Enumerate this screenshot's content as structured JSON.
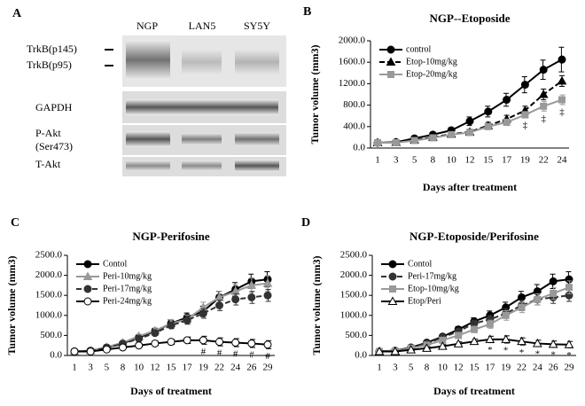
{
  "blot": {
    "panel_label": "A",
    "lanes": [
      "NGP",
      "LAN5",
      "SY5Y"
    ],
    "rows": [
      "TrkB(p145)",
      "TrkB(p95)",
      "GAPDH",
      "P-Akt",
      "(Ser473)",
      "T-Akt"
    ]
  },
  "chart_data": [
    {
      "type": "line",
      "panel_label": "B",
      "title": "NGP--Etoposide",
      "x_label": "Days after treatment",
      "y_label": "Tumor volume (mm3)",
      "categories": [
        "1",
        "3",
        "5",
        "8",
        "10",
        "12",
        "15",
        "17",
        "19",
        "22",
        "24"
      ],
      "ylim": [
        0,
        2000
      ],
      "yticks": [
        {
          "value": 0,
          "label": "0.0"
        },
        {
          "value": 400,
          "label": "400.0"
        },
        {
          "value": 800,
          "label": "800.0"
        },
        {
          "value": 1200,
          "label": "1200.0"
        },
        {
          "value": 1600,
          "label": "1600.0"
        },
        {
          "value": 2000,
          "label": "2000.0"
        }
      ],
      "legend": "top-left",
      "series": [
        {
          "name": "control",
          "color": "#000000",
          "marker": "circle",
          "dash": "solid",
          "values": [
            100,
            110,
            180,
            250,
            330,
            500,
            680,
            900,
            1180,
            1460,
            1650
          ],
          "errors": [
            20,
            20,
            30,
            40,
            50,
            80,
            100,
            120,
            150,
            180,
            230
          ]
        },
        {
          "name": "Etop-10mg/kg",
          "color": "#000000",
          "marker": "triangle",
          "dash": "dashed",
          "values": [
            100,
            105,
            150,
            200,
            260,
            300,
            420,
            540,
            700,
            1000,
            1250
          ],
          "errors": [
            15,
            15,
            20,
            30,
            40,
            50,
            60,
            70,
            80,
            100,
            100
          ]
        },
        {
          "name": "Etop-20mg/kg",
          "color": "#999999",
          "marker": "square",
          "dash": "solid",
          "values": [
            100,
            100,
            140,
            190,
            250,
            290,
            400,
            480,
            620,
            780,
            900
          ],
          "errors": [
            15,
            15,
            20,
            30,
            40,
            40,
            50,
            60,
            60,
            90,
            90
          ]
        }
      ],
      "annotations": [
        {
          "x": "19",
          "label": "‡"
        },
        {
          "x": "22",
          "label": "‡"
        },
        {
          "x": "24",
          "label": "‡"
        }
      ]
    },
    {
      "type": "line",
      "panel_label": "C",
      "title": "NGP-Perifosine",
      "x_label": "Days of treatment",
      "y_label": "Tumor volume (mm3)",
      "categories": [
        "1",
        "3",
        "5",
        "8",
        "10",
        "12",
        "15",
        "17",
        "19",
        "22",
        "24",
        "26",
        "29"
      ],
      "ylim": [
        0,
        2500
      ],
      "yticks": [
        {
          "value": 0,
          "label": "0.0"
        },
        {
          "value": 500,
          "label": "500.0"
        },
        {
          "value": 1000,
          "label": "1000.0"
        },
        {
          "value": 1500,
          "label": "1500.0"
        },
        {
          "value": 2000,
          "label": "2000.0"
        },
        {
          "value": 2500,
          "label": "2500.0"
        }
      ],
      "legend": "top-left",
      "series": [
        {
          "name": "Contol",
          "color": "#000000",
          "marker": "circle",
          "dash": "solid",
          "values": [
            100,
            120,
            200,
            300,
            450,
            600,
            800,
            950,
            1100,
            1450,
            1650,
            1850,
            1900
          ],
          "errors": [
            20,
            20,
            30,
            40,
            50,
            70,
            90,
            110,
            130,
            150,
            170,
            180,
            190
          ]
        },
        {
          "name": "Peri-10mg/kg",
          "color": "#999999",
          "marker": "triangle",
          "dash": "solid",
          "values": [
            100,
            120,
            210,
            320,
            480,
            620,
            800,
            900,
            1200,
            1450,
            1600,
            1750,
            1800
          ],
          "errors": [
            20,
            20,
            30,
            40,
            50,
            70,
            90,
            110,
            130,
            150,
            170,
            180,
            190
          ]
        },
        {
          "name": "Peri-17mg/kg",
          "color": "#333333",
          "marker": "circle",
          "dash": "dashed",
          "values": [
            100,
            110,
            190,
            290,
            420,
            560,
            750,
            880,
            1050,
            1250,
            1400,
            1450,
            1500
          ],
          "errors": [
            20,
            20,
            30,
            40,
            50,
            60,
            80,
            100,
            120,
            130,
            140,
            150,
            150
          ]
        },
        {
          "name": "Peri-24mg/kg",
          "color": "#000000",
          "marker": "open-circle",
          "dash": "solid",
          "values": [
            100,
            100,
            150,
            200,
            250,
            300,
            340,
            380,
            380,
            340,
            320,
            300,
            270
          ],
          "errors": [
            15,
            15,
            20,
            30,
            40,
            50,
            60,
            80,
            100,
            100,
            100,
            100,
            100
          ]
        }
      ],
      "annotations": [
        {
          "x": "19",
          "label": "#"
        },
        {
          "x": "22",
          "label": "#"
        },
        {
          "x": "24",
          "label": "#"
        },
        {
          "x": "26",
          "label": "#"
        },
        {
          "x": "29",
          "label": "#"
        }
      ]
    },
    {
      "type": "line",
      "panel_label": "D",
      "title": "NGP-Etoposide/Perifosine",
      "x_label": "Days of treatment",
      "y_label": "Tumor volume (mm3)",
      "categories": [
        "1",
        "3",
        "5",
        "8",
        "10",
        "12",
        "15",
        "17",
        "19",
        "22",
        "24",
        "26",
        "29"
      ],
      "ylim": [
        0,
        2500
      ],
      "yticks": [
        {
          "value": 0,
          "label": "0.0"
        },
        {
          "value": 500,
          "label": "500.0"
        },
        {
          "value": 1000,
          "label": "1000.0"
        },
        {
          "value": 1500,
          "label": "1500.0"
        },
        {
          "value": 2000,
          "label": "2000.0"
        },
        {
          "value": 2500,
          "label": "2500.0"
        }
      ],
      "legend": "top-left",
      "series": [
        {
          "name": "Contol",
          "color": "#000000",
          "marker": "circle",
          "dash": "solid",
          "values": [
            100,
            120,
            200,
            320,
            470,
            650,
            850,
            1000,
            1200,
            1450,
            1600,
            1850,
            1900
          ],
          "errors": [
            20,
            20,
            30,
            40,
            50,
            70,
            90,
            110,
            130,
            150,
            170,
            180,
            190
          ]
        },
        {
          "name": "Peri-17mg/kg",
          "color": "#333333",
          "marker": "circle",
          "dash": "dashed",
          "values": [
            100,
            120,
            200,
            300,
            450,
            600,
            800,
            900,
            1050,
            1250,
            1400,
            1450,
            1500
          ],
          "errors": [
            20,
            20,
            30,
            40,
            50,
            60,
            80,
            100,
            120,
            130,
            140,
            150,
            150
          ]
        },
        {
          "name": "Etop-10mg/kg",
          "color": "#999999",
          "marker": "square",
          "dash": "solid",
          "values": [
            100,
            110,
            180,
            260,
            380,
            500,
            650,
            780,
            1000,
            1200,
            1400,
            1550,
            1700
          ],
          "errors": [
            20,
            20,
            30,
            40,
            50,
            60,
            80,
            100,
            120,
            130,
            140,
            150,
            160
          ]
        },
        {
          "name": "Etop/Peri",
          "color": "#000000",
          "marker": "open-triangle",
          "dash": "solid",
          "values": [
            100,
            100,
            140,
            180,
            230,
            290,
            350,
            400,
            400,
            350,
            300,
            280,
            270
          ],
          "errors": [
            15,
            15,
            20,
            30,
            40,
            50,
            60,
            80,
            90,
            90,
            80,
            80,
            80
          ]
        }
      ],
      "annotations": [
        {
          "x": "17",
          "label": "*"
        },
        {
          "x": "19",
          "label": "*"
        },
        {
          "x": "22",
          "label": "*"
        },
        {
          "x": "24",
          "label": "*"
        },
        {
          "x": "26",
          "label": "*"
        },
        {
          "x": "29",
          "label": "*"
        }
      ]
    }
  ]
}
